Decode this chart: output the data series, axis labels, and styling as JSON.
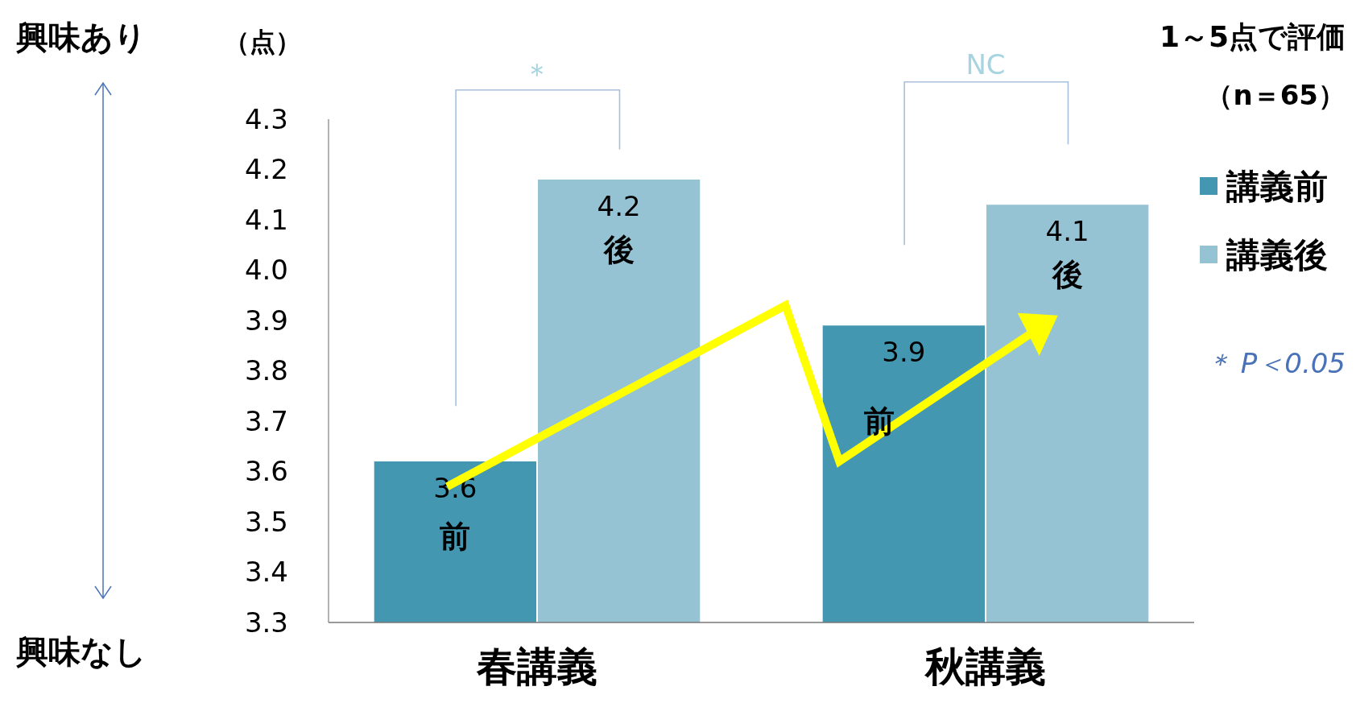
{
  "chart_data": {
    "type": "bar",
    "ylabel": "（点）",
    "categories": [
      "春講義",
      "秋講義"
    ],
    "series": [
      {
        "name": "講義前",
        "color": "#4397b0",
        "values": [
          3.62,
          3.89
        ],
        "value_labels": [
          "3.6",
          "3.9"
        ]
      },
      {
        "name": "講義後",
        "color": "#95c3d3",
        "values": [
          4.18,
          4.13
        ],
        "value_labels": [
          "4.2",
          "4.1"
        ]
      }
    ],
    "ylim": [
      3.3,
      4.3
    ],
    "yticks": [
      3.3,
      3.4,
      3.5,
      3.6,
      3.7,
      3.8,
      3.9,
      {
        "value": 4,
        "label": "4.0"
      },
      4.1,
      4.2,
      4.3
    ],
    "grid": false,
    "legend": "right",
    "annotations": [
      "興味あり",
      "興味なし",
      "1～5点で評価",
      "（n＝65）",
      "＊",
      "NC",
      "＊ P＜0.05",
      "前",
      "後",
      "前",
      "後"
    ]
  }
}
